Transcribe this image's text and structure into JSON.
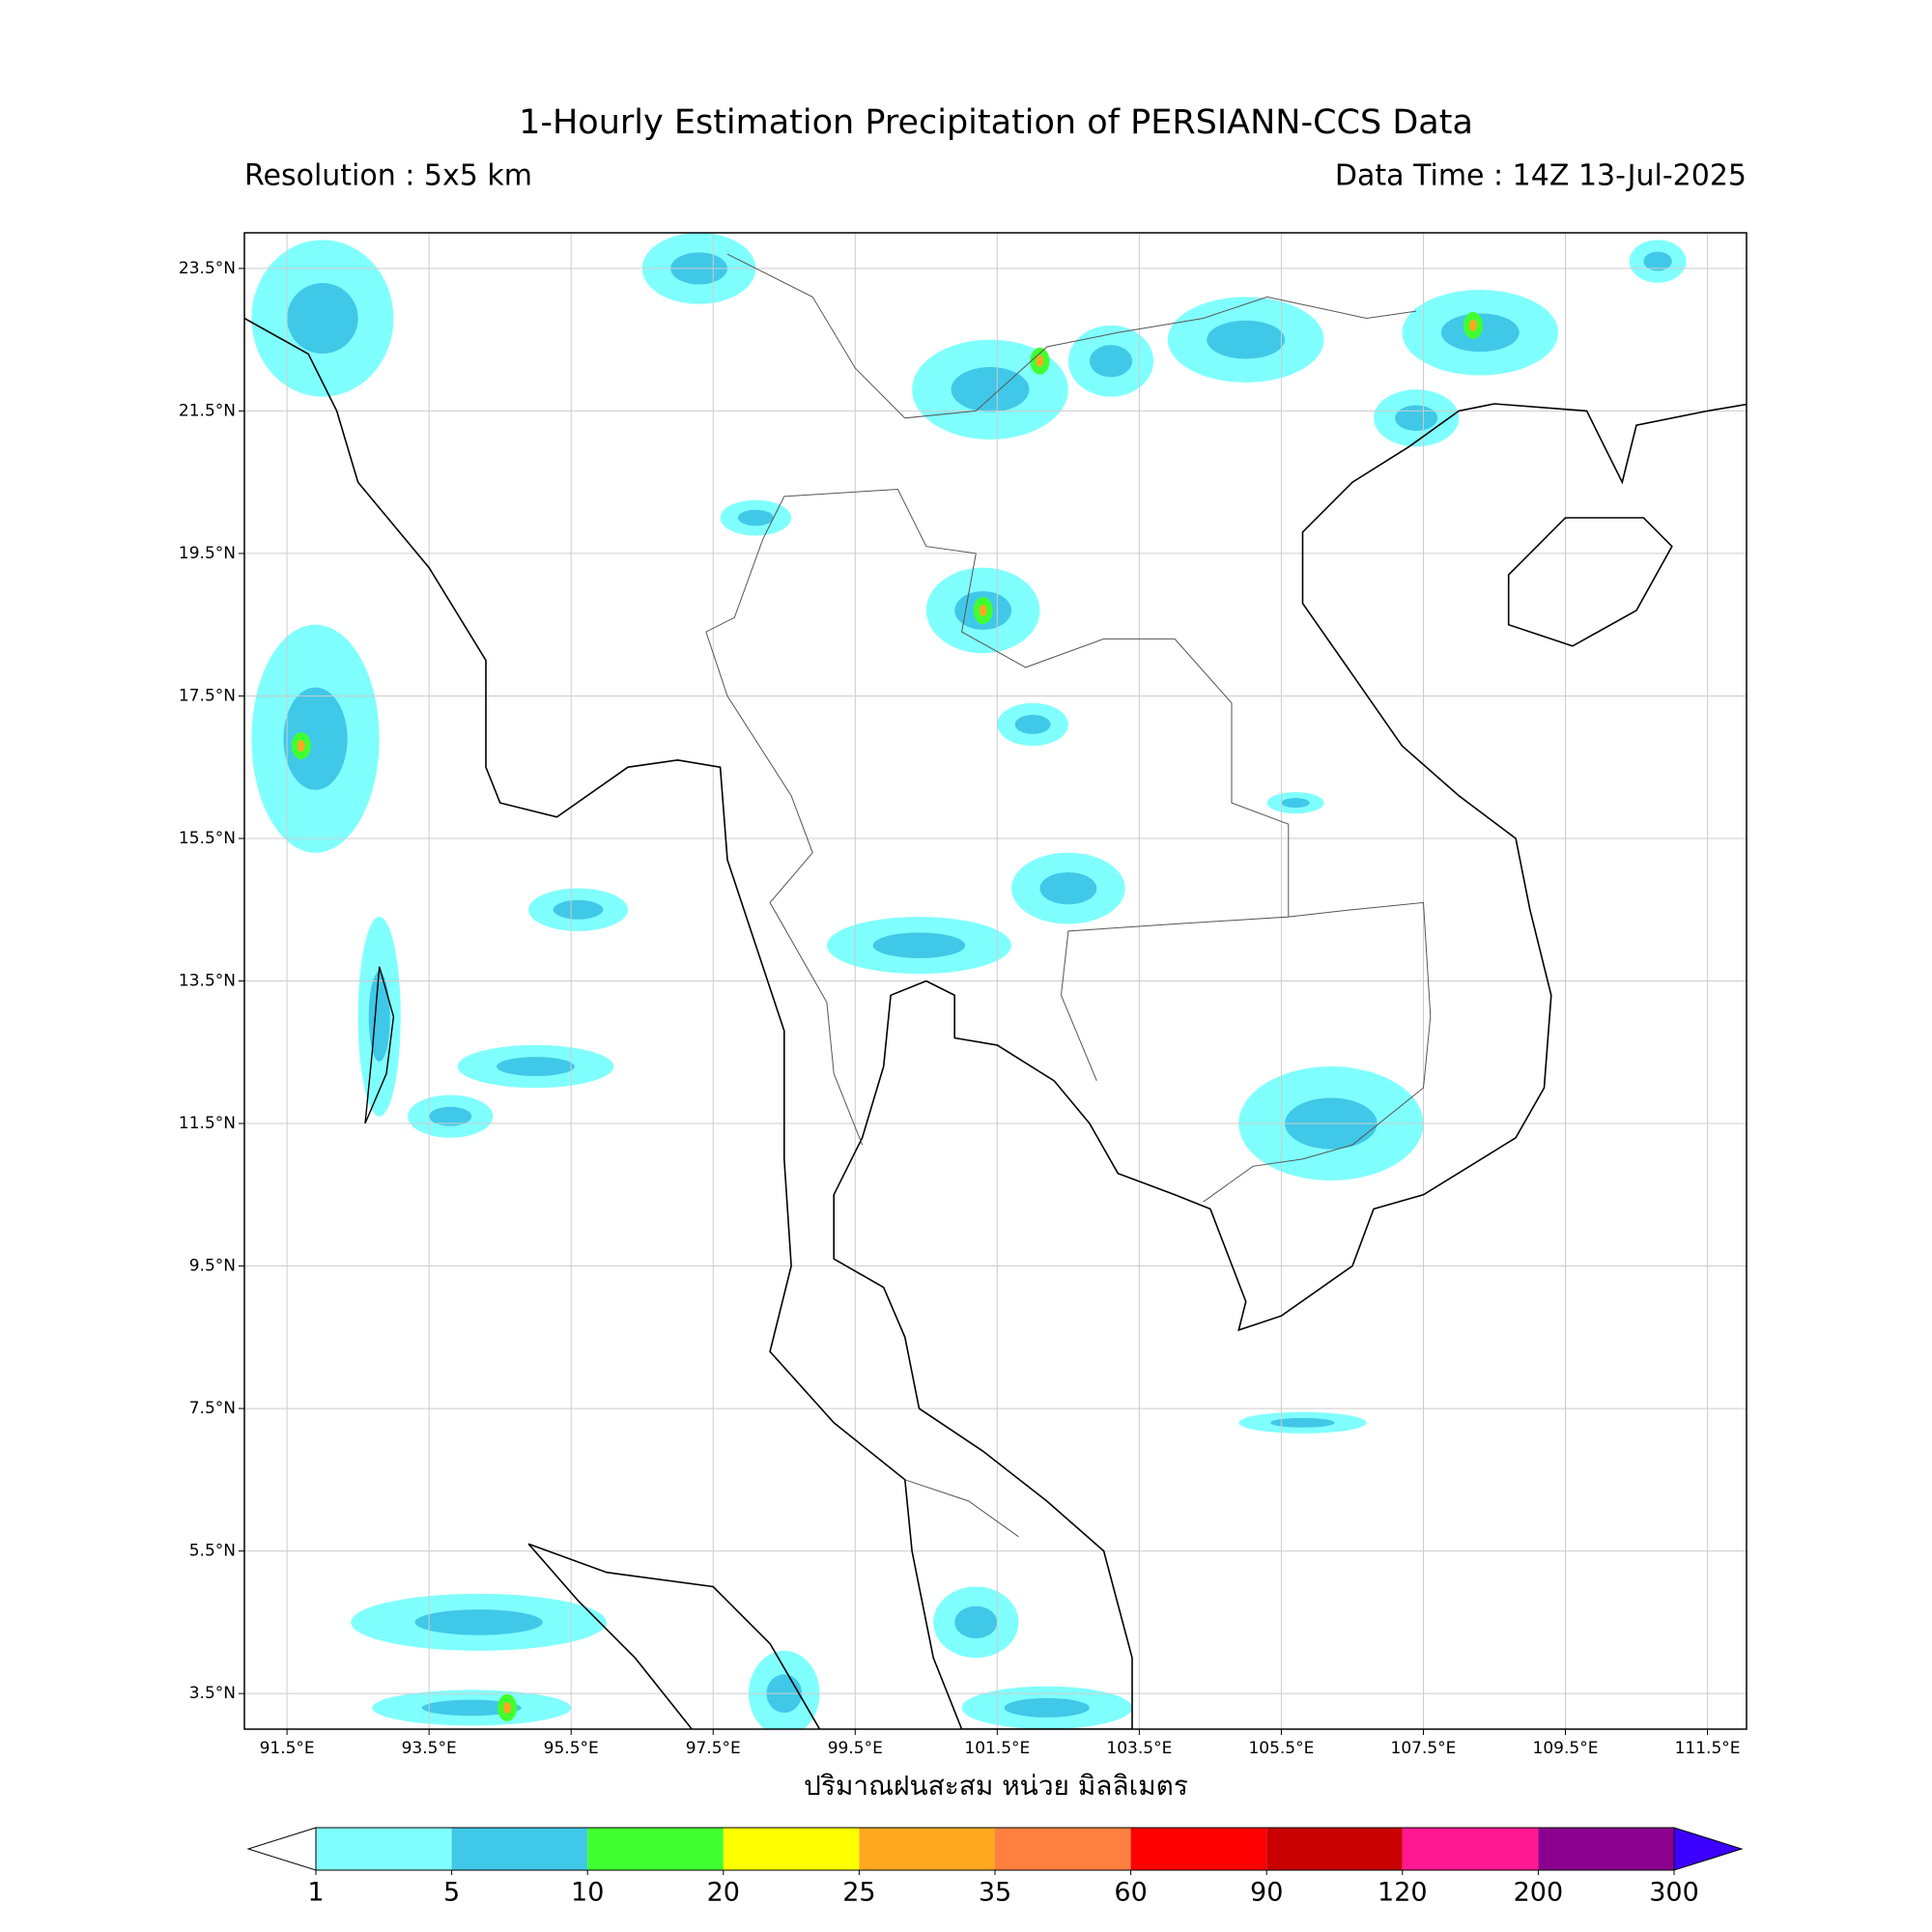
{
  "title": "1-Hourly Estimation Precipitation of PERSIANN-CCS Data",
  "resolution": "Resolution : 5x5 km",
  "data_time": "Data Time : 14Z 13-Jul-2025",
  "map": {
    "xlim": [
      90.9,
      112.05
    ],
    "ylim": [
      3.0,
      24.0
    ],
    "grid": true,
    "xticks": [
      {
        "value": 91.5,
        "label": "91.5°E"
      },
      {
        "value": 93.5,
        "label": "93.5°E"
      },
      {
        "value": 95.5,
        "label": "95.5°E"
      },
      {
        "value": 97.5,
        "label": "97.5°E"
      },
      {
        "value": 99.5,
        "label": "99.5°E"
      },
      {
        "value": 101.5,
        "label": "101.5°E"
      },
      {
        "value": 103.5,
        "label": "103.5°E"
      },
      {
        "value": 105.5,
        "label": "105.5°E"
      },
      {
        "value": 107.5,
        "label": "107.5°E"
      },
      {
        "value": 109.5,
        "label": "109.5°E"
      },
      {
        "value": 111.5,
        "label": "111.5°E"
      }
    ],
    "yticks": [
      {
        "value": 3.5,
        "label": "3.5°N"
      },
      {
        "value": 5.5,
        "label": "5.5°N"
      },
      {
        "value": 7.5,
        "label": "7.5°N"
      },
      {
        "value": 9.5,
        "label": "9.5°N"
      },
      {
        "value": 11.5,
        "label": "11.5°N"
      },
      {
        "value": 13.5,
        "label": "13.5°N"
      },
      {
        "value": 15.5,
        "label": "15.5°N"
      },
      {
        "value": 17.5,
        "label": "17.5°N"
      },
      {
        "value": 19.5,
        "label": "19.5°N"
      },
      {
        "value": 21.5,
        "label": "21.5°N"
      },
      {
        "value": 23.5,
        "label": "23.5°N"
      }
    ]
  },
  "colorbar": {
    "label": "ปริมาณฝนสะสม หน่วย มิลลิเมตร",
    "levels": [
      1,
      5,
      10,
      20,
      25,
      35,
      60,
      90,
      120,
      200,
      300
    ],
    "colors": [
      "#80ffff",
      "#40c8e8",
      "#40ff30",
      "#ffff00",
      "#ffa820",
      "#ff8040",
      "#ff0000",
      "#c80000",
      "#ff1890",
      "#8c0090"
    ],
    "under_color": "#ffffff",
    "over_color": "#3c00ff"
  }
}
